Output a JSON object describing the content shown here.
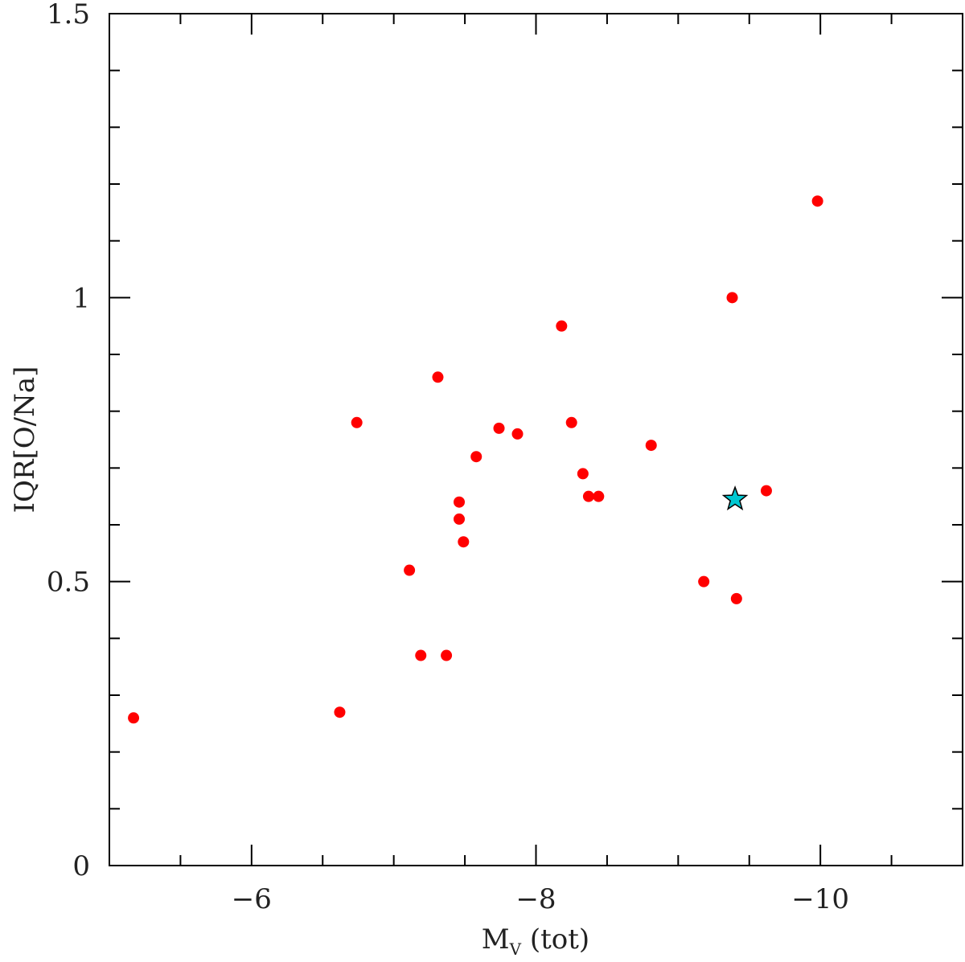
{
  "chart_data": {
    "type": "scatter",
    "xlabel_main": "M",
    "xlabel_sub": "V",
    "xlabel_rest": " (tot)",
    "ylabel": "IQR[O/Na]",
    "xlim": [
      -5,
      -11
    ],
    "ylim": [
      0,
      1.5
    ],
    "x_ticks": [
      -6,
      -8,
      -10
    ],
    "x_tick_labels": [
      "−6",
      "−8",
      "−10"
    ],
    "x_minor_step": 0.5,
    "y_ticks": [
      0,
      0.5,
      1,
      1.5
    ],
    "y_tick_labels": [
      "0",
      "0.5",
      "1",
      "1.5"
    ],
    "y_minor_step": 0.1,
    "grid": false,
    "colors": {
      "points": "#ff0000",
      "star": "#00c8d2",
      "axis": "#000000"
    },
    "series": [
      {
        "marker": "circle",
        "points": [
          {
            "x": -5.17,
            "y": 0.26
          },
          {
            "x": -6.62,
            "y": 0.27
          },
          {
            "x": -6.74,
            "y": 0.78
          },
          {
            "x": -7.11,
            "y": 0.52
          },
          {
            "x": -7.19,
            "y": 0.37
          },
          {
            "x": -7.31,
            "y": 0.86
          },
          {
            "x": -7.37,
            "y": 0.37
          },
          {
            "x": -7.46,
            "y": 0.64
          },
          {
            "x": -7.46,
            "y": 0.61
          },
          {
            "x": -7.49,
            "y": 0.57
          },
          {
            "x": -7.58,
            "y": 0.72
          },
          {
            "x": -7.74,
            "y": 0.77
          },
          {
            "x": -7.87,
            "y": 0.76
          },
          {
            "x": -8.18,
            "y": 0.95
          },
          {
            "x": -8.25,
            "y": 0.78
          },
          {
            "x": -8.33,
            "y": 0.69
          },
          {
            "x": -8.37,
            "y": 0.65
          },
          {
            "x": -8.44,
            "y": 0.65
          },
          {
            "x": -8.81,
            "y": 0.74
          },
          {
            "x": -9.18,
            "y": 0.5
          },
          {
            "x": -9.38,
            "y": 1.0
          },
          {
            "x": -9.41,
            "y": 0.47
          },
          {
            "x": -9.62,
            "y": 0.66
          },
          {
            "x": -9.98,
            "y": 1.17
          }
        ]
      },
      {
        "marker": "star",
        "points": [
          {
            "x": -9.4,
            "y": 0.645
          }
        ]
      }
    ]
  }
}
